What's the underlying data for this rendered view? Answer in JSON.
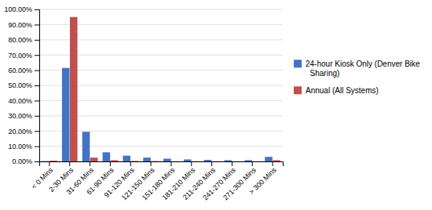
{
  "chart_data": {
    "type": "bar",
    "categories": [
      "< 0 Mins",
      "2-30 Mins",
      "31-60 Mins",
      "61-90 Mins",
      "91-120 Mins",
      "121-150 Mins",
      "151-180 Mins",
      "181-210 Mins",
      "211-240 Mins",
      "241-270 Mins",
      "271-300 Mins",
      "> 300 Mins"
    ],
    "series": [
      {
        "name": "24-hour Kiosk Only (Denver Bike\n  Sharing)",
        "color": "#4472C4",
        "values": [
          0.002,
          0.615,
          0.195,
          0.06,
          0.038,
          0.025,
          0.018,
          0.013,
          0.01,
          0.008,
          0.008,
          0.03
        ]
      },
      {
        "name": "Annual (All Systems)",
        "color": "#C0504D",
        "values": [
          0.005,
          0.95,
          0.025,
          0.008,
          0.003,
          0.002,
          0.001,
          0.001,
          0.001,
          0.0005,
          0.0005,
          0.008
        ]
      }
    ],
    "ylim": [
      0,
      1.0
    ],
    "yticks": [
      {
        "value": 0.0,
        "label": "0.00%"
      },
      {
        "value": 0.1,
        "label": "10.00%"
      },
      {
        "value": 0.2,
        "label": "20.00%"
      },
      {
        "value": 0.3,
        "label": "30.00%"
      },
      {
        "value": 0.4,
        "label": "40.00%"
      },
      {
        "value": 0.5,
        "label": "50.00%"
      },
      {
        "value": 0.6,
        "label": "60.00%"
      },
      {
        "value": 0.7,
        "label": "70.00%"
      },
      {
        "value": 0.8,
        "label": "80.00%"
      },
      {
        "value": 0.9,
        "label": "90.00%"
      },
      {
        "value": 1.0,
        "label": "100.00%"
      }
    ],
    "grid": true,
    "legend": "right"
  }
}
